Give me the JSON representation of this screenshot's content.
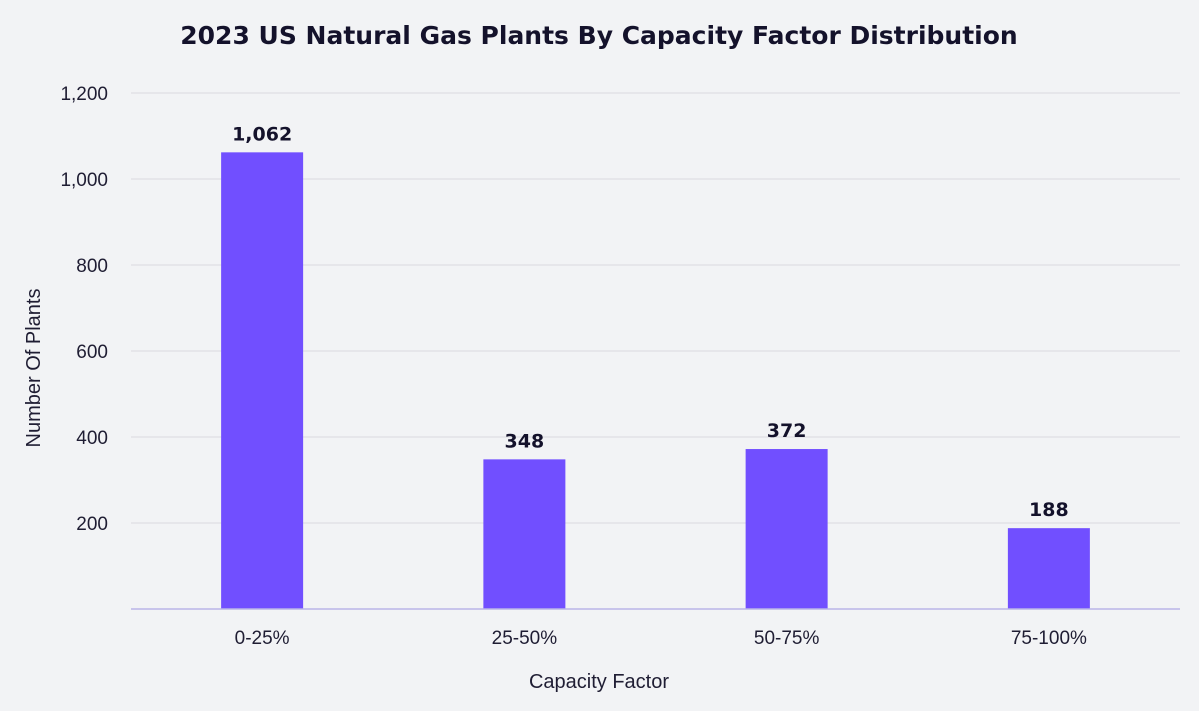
{
  "chart_data": {
    "type": "bar",
    "title": "2023 US Natural Gas Plants By Capacity Factor Distribution",
    "xlabel": "Capacity Factor",
    "ylabel": "Number Of Plants",
    "categories": [
      "0-25%",
      "25-50%",
      "50-75%",
      "75-100%"
    ],
    "values": [
      1062,
      348,
      372,
      188
    ],
    "value_labels": [
      "1,062",
      "348",
      "372",
      "188"
    ],
    "ylim": [
      0,
      1200
    ],
    "yticks": [
      200,
      400,
      600,
      800,
      1000,
      1200
    ],
    "ytick_labels": [
      "200",
      "400",
      "600",
      "800",
      "1,000",
      "1,200"
    ],
    "grid": true,
    "bar_color": "#714fff"
  }
}
